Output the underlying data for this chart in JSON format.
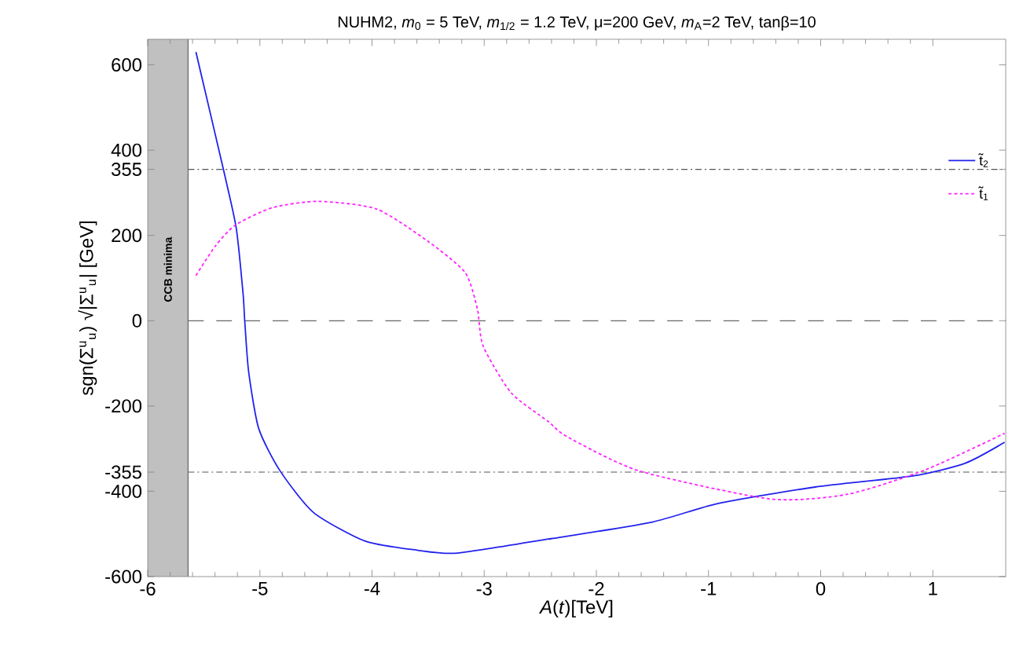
{
  "chart_data": {
    "type": "line",
    "title": "NUHM2, *m*$_{0}$ = 5 TeV, *m*$_{1/2}$ = 1.2 TeV, μ=200 GeV, *m*$_{A}$=2 TeV, tanβ=10",
    "xlabel": "*A*(*t*)[TeV]",
    "ylabel": "sgn(Σ$^{u}$$_{u}$) √|Σ$^{u}$$_{u}$| [GeV]",
    "xlim": [
      -6,
      1.65
    ],
    "ylim": [
      -600,
      660
    ],
    "xticks": [
      -6,
      -5,
      -4,
      -3,
      -2,
      -1,
      0,
      1
    ],
    "yticks": [
      -600,
      -400,
      -355,
      -200,
      0,
      200,
      355,
      400,
      600
    ],
    "grid": false,
    "legend": "top right",
    "series": [
      {
        "name": "t̃$_{2}$",
        "color": "#2222ee",
        "line_style": "solid",
        "x": [
          -5.57,
          -5.32,
          -5.21,
          -5.15,
          -5.135,
          -5.1,
          -5.01,
          -4.82,
          -4.52,
          -4.06,
          -3.6,
          -3.24,
          -2.43,
          -2.37,
          -1.5,
          -0.92,
          -0.05,
          0.82,
          1.29,
          1.64
        ],
        "values": [
          630,
          349,
          216,
          64,
          0,
          -120,
          -253,
          -352,
          -450,
          -517,
          -538,
          -545,
          -512,
          -510,
          -472,
          -429,
          -390,
          -364,
          -334,
          -285
        ]
      },
      {
        "name": "t̃$_{1}$",
        "color": "#ff22ff",
        "line_style": "dotted",
        "x": [
          -5.57,
          -5.4,
          -5.22,
          -4.89,
          -4.48,
          -3.96,
          -3.5,
          -3.17,
          -3.06,
          -3.01,
          -2.76,
          -2.43,
          -2.26,
          -1.62,
          -0.45,
          0.24,
          0.94,
          1.64
        ],
        "values": [
          106,
          174,
          224,
          265,
          280,
          262,
          186,
          113,
          27,
          -59,
          -169,
          -236,
          -272,
          -352,
          -418,
          -407,
          -349,
          -264
        ]
      }
    ],
    "ref_lines": [
      {
        "axis": "y",
        "value": 0,
        "line_style": "dashed",
        "color": "#666666"
      },
      {
        "axis": "y",
        "value": 355,
        "line_style": "dashdot",
        "color": "#555555"
      },
      {
        "axis": "y",
        "value": -355,
        "line_style": "dashdot",
        "color": "#555555"
      },
      {
        "axis": "x",
        "value": -5.64,
        "line_style": "solid",
        "color": "#666666"
      }
    ],
    "bands": [
      {
        "axis": "x",
        "from": -6,
        "to": -5.64,
        "label": "CCB minima",
        "color": "#c0c0c0"
      }
    ]
  }
}
